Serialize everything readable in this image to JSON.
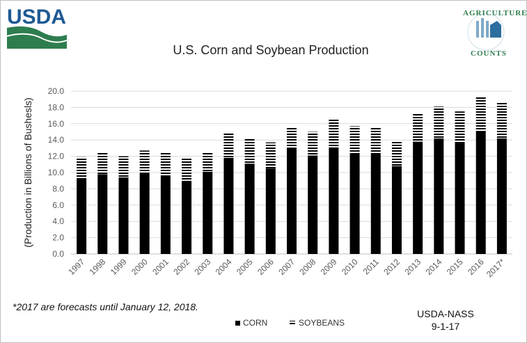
{
  "header": {
    "usda_logo_text": "USDA",
    "ag_counts_top": "AGRICULTURE",
    "ag_counts_bottom": "COUNTS"
  },
  "footnote": "*2017 are forecasts until January 12, 2018.",
  "source": {
    "line1": "USDA-NASS",
    "line2": "9-1-17"
  },
  "colors": {
    "corn": "#000000",
    "soybeans_stripe": "#000000",
    "grid": "#d9d9d9",
    "usda_blue": "#1e5a94",
    "usda_green": "#2e7d4f"
  },
  "chart_data": {
    "type": "bar",
    "stacked": true,
    "title": "U.S. Corn and Soybean Production",
    "xlabel": "",
    "ylabel": "(Production in Billions of Bushesls)",
    "ylim": [
      0,
      20
    ],
    "ytick_step": 2,
    "ytick_labels": [
      "0.0",
      "2.0",
      "4.0",
      "6.0",
      "8.0",
      "10.0",
      "12.0",
      "14.0",
      "16.0",
      "18.0",
      "20.0"
    ],
    "grid": true,
    "legend_position": "bottom-center",
    "categories": [
      "1997",
      "1998",
      "1999",
      "2000",
      "2001",
      "2002",
      "2003",
      "2004",
      "2005",
      "2006",
      "2007",
      "2008",
      "2009",
      "2010",
      "2011",
      "2012",
      "2013",
      "2014",
      "2015",
      "2016",
      "2017*"
    ],
    "series": [
      {
        "name": "CORN",
        "pattern": "solid",
        "values": [
          9.2,
          9.8,
          9.4,
          9.9,
          9.5,
          9.0,
          10.1,
          11.8,
          11.1,
          10.5,
          13.0,
          12.1,
          13.1,
          12.4,
          12.4,
          10.8,
          13.8,
          14.2,
          13.6,
          15.1,
          14.2
        ]
      },
      {
        "name": "SOYBEANS",
        "pattern": "striped",
        "values": [
          2.7,
          2.7,
          2.6,
          2.8,
          2.9,
          2.7,
          2.4,
          3.1,
          3.1,
          3.2,
          2.6,
          2.9,
          3.4,
          3.3,
          3.1,
          3.0,
          3.4,
          3.9,
          3.9,
          4.3,
          4.4
        ]
      }
    ]
  }
}
